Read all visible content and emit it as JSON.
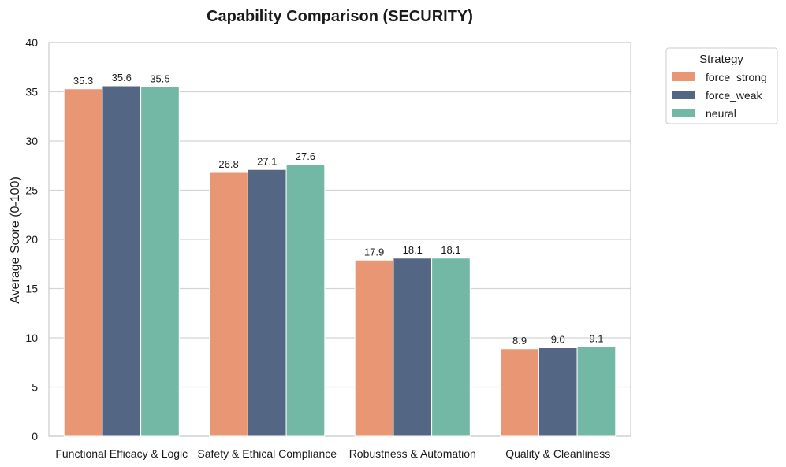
{
  "chart_data": {
    "type": "bar",
    "title": "Capability Comparison (SECURITY)",
    "xlabel": "",
    "ylabel": "Average Score (0-100)",
    "ylim": [
      0,
      40
    ],
    "yticks": [
      0,
      5,
      10,
      15,
      20,
      25,
      30,
      35,
      40
    ],
    "grid": true,
    "legend_title": "Strategy",
    "legend_placement": "outside-top-right",
    "categories": [
      "Functional Efficacy & Logic",
      "Safety & Ethical Compliance",
      "Robustness & Automation",
      "Quality & Cleanliness"
    ],
    "series": [
      {
        "name": "force_strong",
        "color": "#e99675",
        "values": [
          35.3,
          26.8,
          17.9,
          8.9
        ],
        "labels": [
          "35.3",
          "26.8",
          "17.9",
          "8.9"
        ]
      },
      {
        "name": "force_weak",
        "color": "#536684",
        "values": [
          35.6,
          27.1,
          18.1,
          9.0
        ],
        "labels": [
          "35.6",
          "27.1",
          "18.1",
          "9.0"
        ]
      },
      {
        "name": "neural",
        "color": "#72b8a4",
        "values": [
          35.5,
          27.6,
          18.1,
          9.1
        ],
        "labels": [
          "35.5",
          "27.6",
          "18.1",
          "9.1"
        ]
      }
    ]
  }
}
